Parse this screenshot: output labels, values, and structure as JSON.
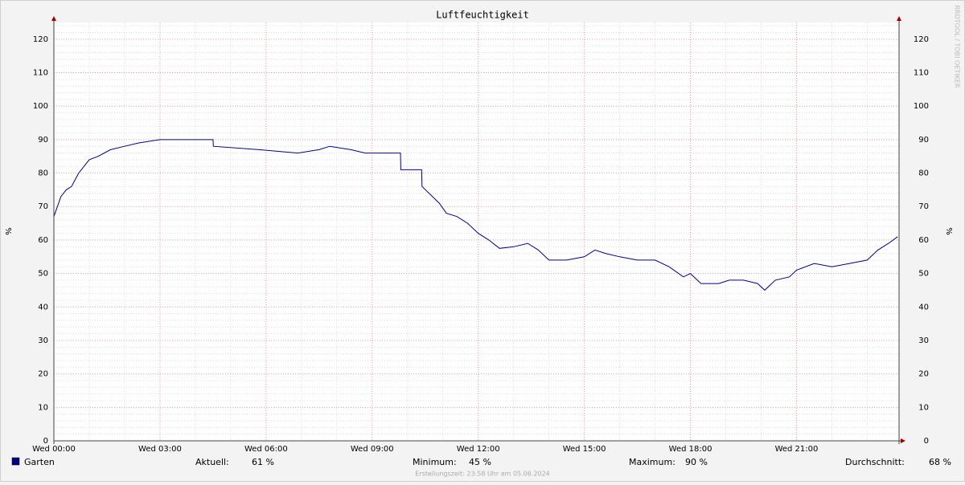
{
  "chart_data": {
    "type": "line",
    "title": "Luftfeuchtigkeit",
    "ylabel": "%",
    "watermark": "RRDTOOL / TOBI OETIKER",
    "footer": "Erstellungszeit: 23:58 Uhr am 05.06.2024",
    "xlim": [
      0,
      23.9
    ],
    "ylim": [
      0,
      125
    ],
    "yticks": [
      0,
      10,
      20,
      30,
      40,
      50,
      60,
      70,
      80,
      90,
      100,
      110,
      120
    ],
    "yminorticks": [
      2,
      4,
      6,
      8,
      12,
      14,
      16,
      18,
      22,
      24,
      26,
      28,
      32,
      34,
      36,
      38,
      42,
      44,
      46,
      48,
      52,
      54,
      56,
      58,
      62,
      64,
      66,
      68,
      72,
      74,
      76,
      78,
      82,
      84,
      86,
      88,
      92,
      94,
      96,
      98,
      102,
      104,
      106,
      108,
      112,
      114,
      116,
      118,
      122,
      124
    ],
    "xticks": [
      {
        "value": 0,
        "label": "Wed 00:00"
      },
      {
        "value": 3,
        "label": "Wed 03:00"
      },
      {
        "value": 6,
        "label": "Wed 06:00"
      },
      {
        "value": 9,
        "label": "Wed 09:00"
      },
      {
        "value": 12,
        "label": "Wed 12:00"
      },
      {
        "value": 15,
        "label": "Wed 15:00"
      },
      {
        "value": 18,
        "label": "Wed 18:00"
      },
      {
        "value": 21,
        "label": "Wed 21:00"
      }
    ],
    "xminorticks": [
      1,
      2,
      4,
      5,
      7,
      8,
      10,
      11,
      13,
      14,
      16,
      17,
      19,
      20,
      22,
      23
    ],
    "grid": true,
    "x": [
      0,
      0.1,
      0.2,
      0.35,
      0.5,
      0.6,
      0.7,
      0.85,
      1.0,
      1.25,
      1.6,
      2.0,
      2.4,
      3.0,
      4.5,
      4.51,
      5.8,
      6.9,
      7.5,
      7.8,
      8.4,
      8.8,
      9.8,
      9.81,
      10.4,
      10.41,
      10.9,
      11.1,
      11.4,
      11.7,
      12.0,
      12.3,
      12.6,
      13.0,
      13.4,
      13.7,
      14.0,
      14.5,
      15.0,
      15.3,
      15.6,
      16.0,
      16.5,
      17.0,
      17.4,
      17.8,
      18.0,
      18.3,
      18.8,
      19.1,
      19.5,
      19.9,
      20.1,
      20.4,
      20.8,
      21.0,
      21.5,
      22.0,
      22.5,
      23.0,
      23.3,
      23.6,
      23.86
    ],
    "series": [
      {
        "name": "Garten",
        "color": "#00008b",
        "values": [
          67,
          70,
          73,
          75,
          76,
          78,
          80,
          82,
          84,
          85,
          87,
          88,
          89,
          90,
          90,
          88,
          87,
          86,
          87,
          88,
          87,
          86,
          86,
          81,
          81,
          76,
          71,
          68,
          67,
          65,
          62,
          60,
          57.5,
          58,
          59,
          57,
          54,
          54,
          55,
          57,
          56,
          55,
          54,
          54,
          52,
          49,
          50,
          47,
          47,
          48,
          48,
          47,
          45,
          48,
          49,
          51,
          53,
          52,
          53,
          54,
          57,
          59,
          61
        ]
      }
    ],
    "stats": [
      {
        "label": "Aktuell:",
        "value": "61 %"
      },
      {
        "label": "Minimum:",
        "value": "45 %"
      },
      {
        "label": "Maximum:",
        "value": "90 %"
      },
      {
        "label": "Durchschnitt:",
        "value": "68 %"
      }
    ]
  }
}
